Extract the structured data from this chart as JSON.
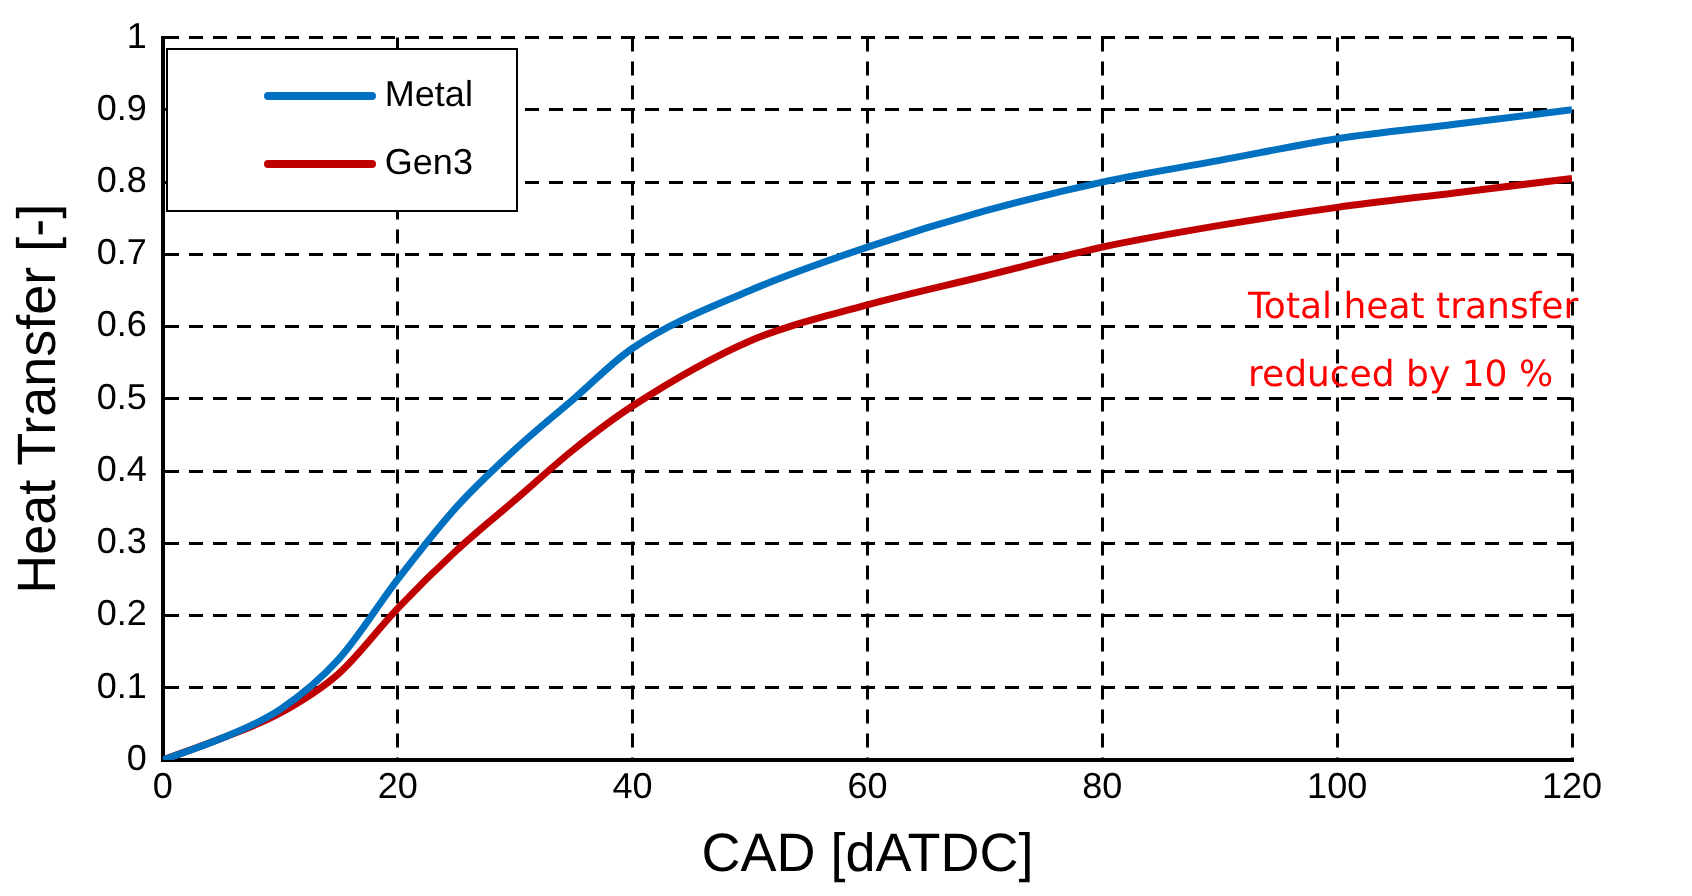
{
  "chart_data": {
    "type": "line",
    "xlabel": "CAD [dATDC]",
    "ylabel": "Heat Transfer [-]",
    "x": [
      0,
      5,
      10,
      15,
      20,
      25,
      30,
      35,
      40,
      50,
      60,
      70,
      80,
      90,
      100,
      110,
      120
    ],
    "series": [
      {
        "name": "Metal",
        "color": "#0070c0",
        "values": [
          0,
          0.03,
          0.07,
          0.14,
          0.25,
          0.35,
          0.43,
          0.5,
          0.57,
          0.65,
          0.71,
          0.76,
          0.8,
          0.83,
          0.86,
          0.88,
          0.9
        ]
      },
      {
        "name": "Gen3",
        "color": "#c00000",
        "values": [
          0,
          0.03,
          0.065,
          0.12,
          0.21,
          0.29,
          0.36,
          0.43,
          0.49,
          0.58,
          0.63,
          0.67,
          0.71,
          0.74,
          0.765,
          0.785,
          0.805
        ]
      }
    ],
    "xlim": [
      0,
      120
    ],
    "xticks": [
      0,
      20,
      40,
      60,
      80,
      100,
      120
    ],
    "ylim": [
      0,
      1
    ],
    "yticks": [
      0,
      0.1,
      0.2,
      0.3,
      0.4,
      0.5,
      0.6,
      0.7,
      0.8,
      0.9,
      1
    ],
    "grid": true,
    "legend": "top left",
    "marker": "none",
    "line_style": "solid",
    "annotations": [
      "Total heat transfer reduced by 10 %"
    ]
  }
}
